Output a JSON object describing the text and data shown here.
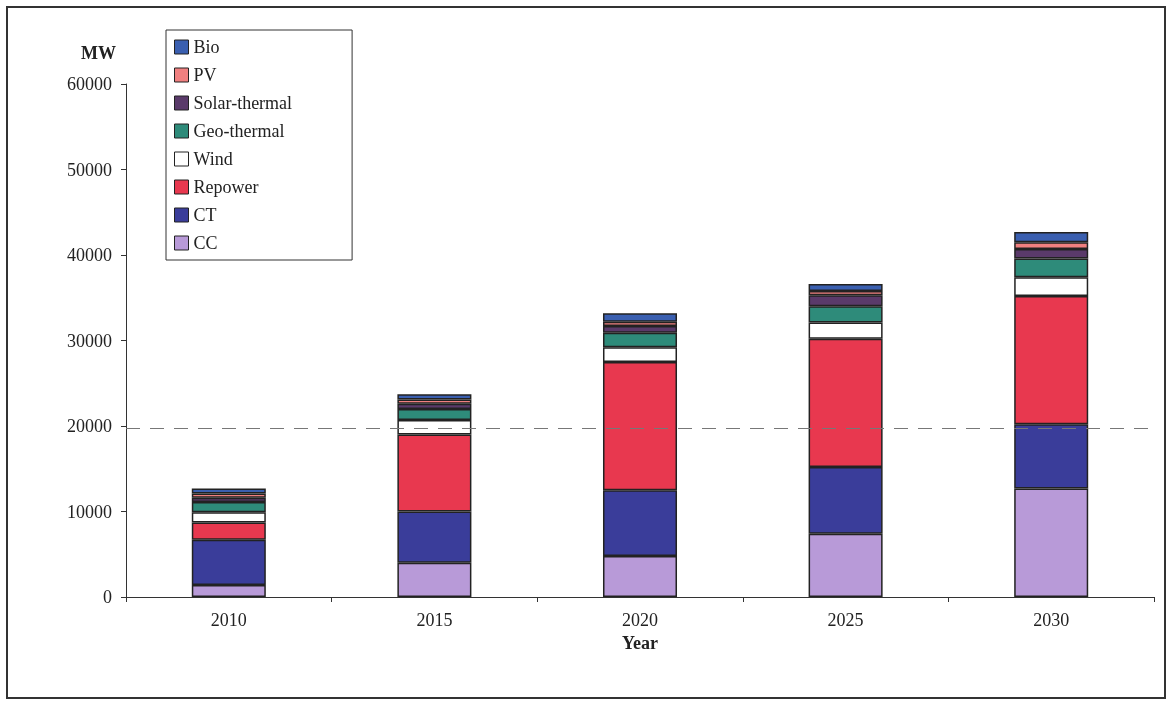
{
  "chart_data": {
    "type": "bar",
    "stacked": true,
    "xlabel": "Year",
    "ylabel": "MW",
    "categories": [
      "2010",
      "2015",
      "2020",
      "2025",
      "2030"
    ],
    "series": [
      {
        "name": "CC",
        "color": "#b89ad8",
        "values": [
          1400,
          4000,
          4800,
          7400,
          12700
        ]
      },
      {
        "name": "CT",
        "color": "#3a3d9a",
        "values": [
          5300,
          6000,
          7700,
          7800,
          7500
        ]
      },
      {
        "name": "Repower",
        "color": "#e8384f",
        "values": [
          2000,
          9000,
          15000,
          15000,
          15000
        ]
      },
      {
        "name": "Wind",
        "color": "#ffffff",
        "values": [
          1200,
          1700,
          1700,
          1900,
          2200
        ]
      },
      {
        "name": "Geo-thermal",
        "color": "#2e8b7a",
        "values": [
          1200,
          1300,
          1700,
          1900,
          2200
        ]
      },
      {
        "name": "Solar-thermal",
        "color": "#5a3a6a",
        "values": [
          500,
          600,
          800,
          1300,
          1100
        ]
      },
      {
        "name": "PV",
        "color": "#f08080",
        "values": [
          500,
          500,
          500,
          500,
          800
        ]
      },
      {
        "name": "Bio",
        "color": "#3a5fb0",
        "values": [
          600,
          600,
          1000,
          800,
          1200
        ]
      }
    ],
    "ylim": [
      0,
      60000
    ],
    "yticks": [
      0,
      10000,
      20000,
      30000,
      40000,
      50000,
      60000
    ],
    "ref_lines": [
      {
        "axis": "y",
        "value": 19700,
        "color": "#777777",
        "line_style": "dashed"
      }
    ],
    "grid": false,
    "legend": "top left"
  }
}
